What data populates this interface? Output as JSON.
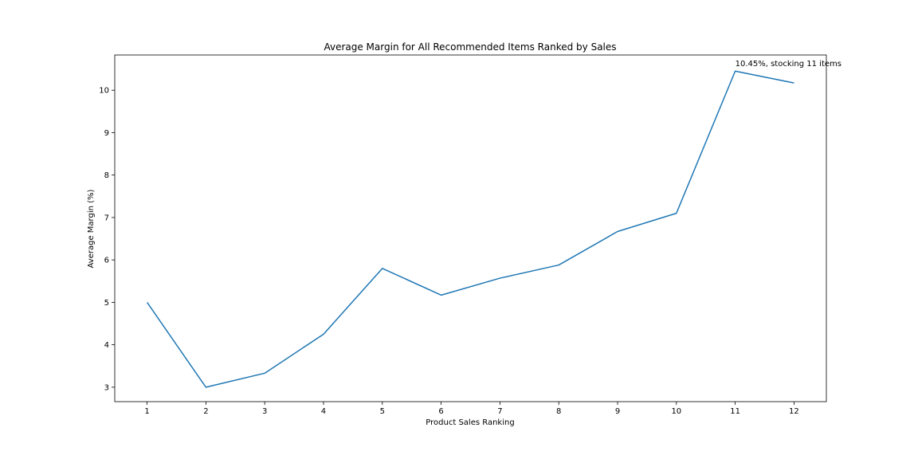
{
  "chart_data": {
    "type": "line",
    "title": "Average Margin for All Recommended Items Ranked by Sales",
    "xlabel": "Product Sales Ranking",
    "ylabel": "Average Margin (%)",
    "x": [
      1,
      2,
      3,
      4,
      5,
      6,
      7,
      8,
      9,
      10,
      11,
      12
    ],
    "xlim": [
      0.45,
      12.55
    ],
    "ylim": [
      2.66,
      10.83
    ],
    "xticks": [
      "1",
      "2",
      "3",
      "4",
      "5",
      "6",
      "7",
      "8",
      "9",
      "10",
      "11",
      "12"
    ],
    "yticks": [
      "3",
      "4",
      "5",
      "6",
      "7",
      "8",
      "9",
      "10"
    ],
    "grid": false,
    "series": [
      {
        "values": [
          5.0,
          3.0,
          3.33,
          4.25,
          5.8,
          5.17,
          5.57,
          5.88,
          6.67,
          7.1,
          10.45,
          10.17
        ],
        "color": "#1f77b4"
      }
    ],
    "annotations": [
      {
        "text": "10.45%, stocking 11 items",
        "x": 11,
        "y": 10.45
      }
    ]
  }
}
